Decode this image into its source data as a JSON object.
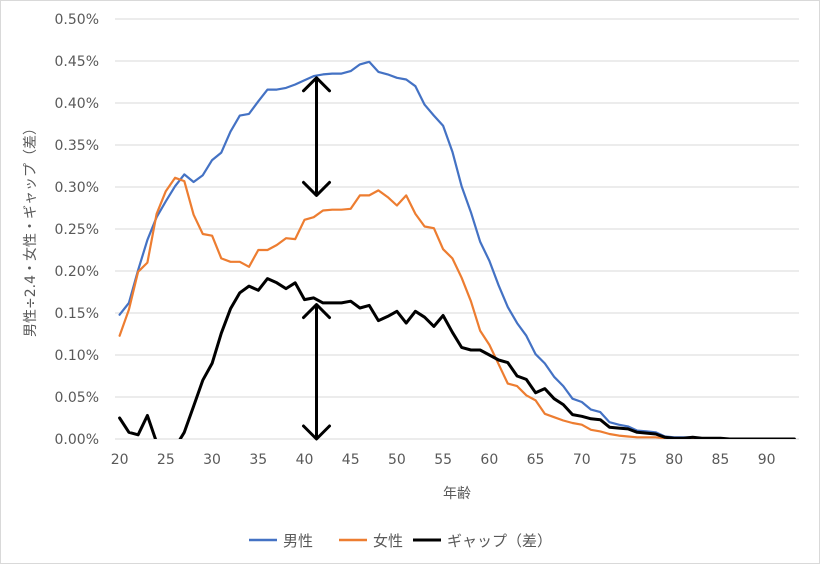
{
  "chart_data": {
    "type": "line",
    "xlabel": "年齢",
    "ylabel": "男性÷2.4・女性・ギャップ（差）",
    "xlim": [
      19.5,
      93.5
    ],
    "ylim": [
      0,
      0.005
    ],
    "x_ticks": [
      20,
      25,
      30,
      35,
      40,
      45,
      50,
      55,
      60,
      65,
      70,
      75,
      80,
      85,
      90
    ],
    "y_ticks": [
      {
        "value": 0,
        "label": "0.00%"
      },
      {
        "value": 0.0005,
        "label": "0.05%"
      },
      {
        "value": 0.001,
        "label": "0.10%"
      },
      {
        "value": 0.0015,
        "label": "0.15%"
      },
      {
        "value": 0.002,
        "label": "0.20%"
      },
      {
        "value": 0.0025,
        "label": "0.25%"
      },
      {
        "value": 0.003,
        "label": "0.30%"
      },
      {
        "value": 0.0035,
        "label": "0.35%"
      },
      {
        "value": 0.004,
        "label": "0.40%"
      },
      {
        "value": 0.0045,
        "label": "0.45%"
      },
      {
        "value": 0.005,
        "label": "0.50%"
      }
    ],
    "grid": true,
    "legend_position": "bottom",
    "x": [
      20,
      21,
      22,
      23,
      24,
      25,
      26,
      27,
      28,
      29,
      30,
      31,
      32,
      33,
      34,
      35,
      36,
      37,
      38,
      39,
      40,
      41,
      42,
      43,
      44,
      45,
      46,
      47,
      48,
      49,
      50,
      51,
      52,
      53,
      54,
      55,
      56,
      57,
      58,
      59,
      60,
      61,
      62,
      63,
      64,
      65,
      66,
      67,
      68,
      69,
      70,
      71,
      72,
      73,
      74,
      75,
      76,
      77,
      78,
      79,
      80,
      81,
      82,
      83,
      84,
      85,
      86,
      87,
      88,
      89,
      90,
      91,
      92,
      93
    ],
    "series": [
      {
        "name": "男性",
        "color": "#4472C4",
        "values": [
          0.00148,
          0.00162,
          0.00201,
          0.00237,
          0.00264,
          0.00283,
          0.00301,
          0.00315,
          0.00306,
          0.00314,
          0.00332,
          0.00341,
          0.00366,
          0.00385,
          0.00387,
          0.00402,
          0.00416,
          0.00416,
          0.00418,
          0.00422,
          0.00427,
          0.00432,
          0.00434,
          0.00435,
          0.00435,
          0.00438,
          0.00446,
          0.00449,
          0.00437,
          0.00434,
          0.0043,
          0.00428,
          0.0042,
          0.00398,
          0.00385,
          0.00373,
          0.00342,
          0.00301,
          0.0027,
          0.00235,
          0.00212,
          0.00183,
          0.00157,
          0.00138,
          0.00123,
          0.00101,
          0.0009,
          0.00074,
          0.00063,
          0.00048,
          0.00044,
          0.00035,
          0.00032,
          0.0002,
          0.00017,
          0.00015,
          0.0001,
          9e-05,
          8e-05,
          3e-05,
          2e-05,
          2e-05,
          2e-05,
          1e-05,
          1e-05,
          1e-05,
          0,
          0,
          0,
          0,
          0,
          0,
          0,
          0
        ]
      },
      {
        "name": "女性",
        "color": "#ED7D31",
        "values": [
          0.00123,
          0.00154,
          0.00199,
          0.0021,
          0.00268,
          0.00295,
          0.00311,
          0.00307,
          0.00267,
          0.00244,
          0.00242,
          0.00215,
          0.00211,
          0.00211,
          0.00205,
          0.00225,
          0.00225,
          0.00231,
          0.00239,
          0.00238,
          0.00261,
          0.00264,
          0.00272,
          0.00273,
          0.00273,
          0.00274,
          0.0029,
          0.0029,
          0.00296,
          0.00288,
          0.00278,
          0.0029,
          0.00268,
          0.00253,
          0.00251,
          0.00226,
          0.00215,
          0.00192,
          0.00164,
          0.00129,
          0.00112,
          0.00089,
          0.00066,
          0.00063,
          0.00052,
          0.00046,
          0.0003,
          0.00026,
          0.00022,
          0.00019,
          0.00017,
          0.00011,
          9e-05,
          6e-05,
          4e-05,
          3e-05,
          2e-05,
          2e-05,
          2e-05,
          1e-05,
          1e-05,
          1e-05,
          0,
          0,
          0,
          0,
          0,
          0,
          0,
          0,
          0,
          0,
          0,
          0
        ]
      },
      {
        "name": "ギャップ（差）",
        "color": "#000000",
        "values": [
          0.00025,
          8e-05,
          5e-05,
          0.00028,
          -4e-05,
          -0.00012,
          -0.0001,
          8e-05,
          0.00039,
          0.0007,
          0.0009,
          0.00126,
          0.00155,
          0.00174,
          0.00182,
          0.00177,
          0.00191,
          0.00186,
          0.00179,
          0.00186,
          0.00166,
          0.00168,
          0.00162,
          0.00162,
          0.00162,
          0.00164,
          0.00156,
          0.00159,
          0.00141,
          0.00146,
          0.00152,
          0.00138,
          0.00152,
          0.00145,
          0.00134,
          0.00147,
          0.00127,
          0.00109,
          0.00106,
          0.00106,
          0.001,
          0.00094,
          0.00091,
          0.00075,
          0.00071,
          0.00055,
          0.0006,
          0.00048,
          0.00041,
          0.00029,
          0.00027,
          0.00024,
          0.00023,
          0.00014,
          0.00013,
          0.00012,
          8e-05,
          7e-05,
          6e-05,
          2e-05,
          1e-05,
          1e-05,
          2e-05,
          1e-05,
          1e-05,
          1e-05,
          0,
          0,
          0,
          0,
          0,
          0,
          0,
          0
        ]
      }
    ],
    "annotations": [
      {
        "type": "double-arrow",
        "x": 41.3,
        "y_from": 0.0043,
        "y_to": 0.0029
      },
      {
        "type": "double-arrow",
        "x": 41.3,
        "y_from": 0.0016,
        "y_to": 0.0
      }
    ]
  }
}
